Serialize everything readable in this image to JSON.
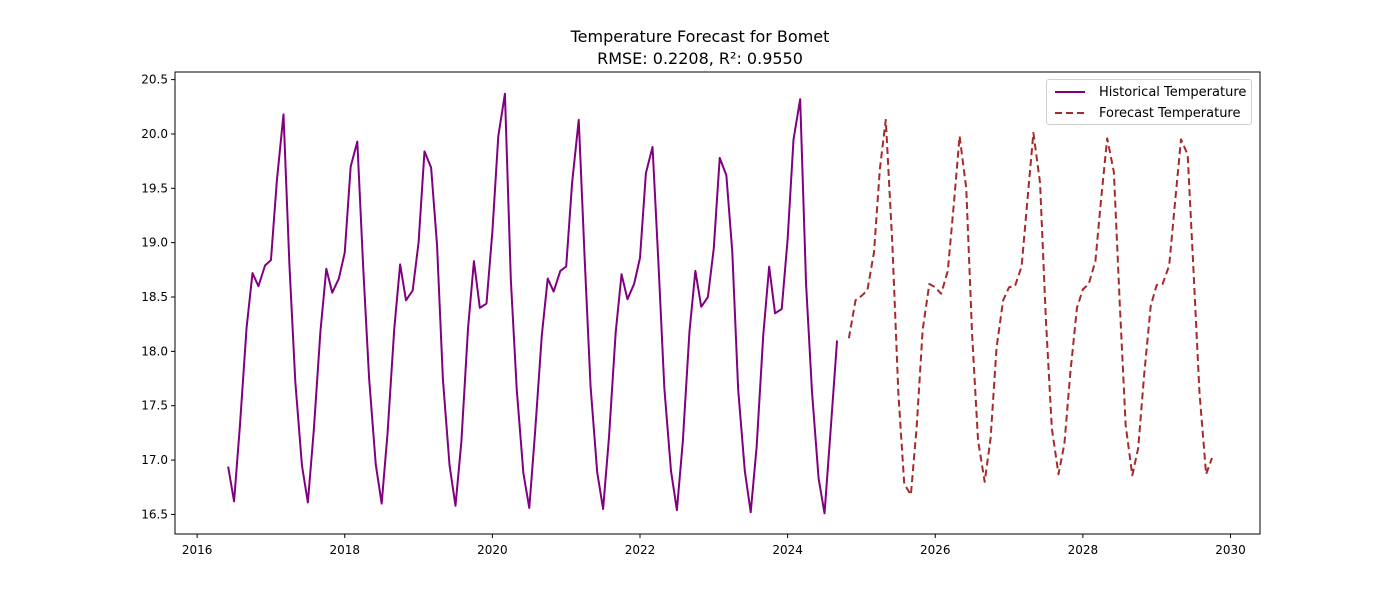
{
  "chart_data": {
    "type": "line",
    "title": "Temperature Forecast for Bomet",
    "subtitle": "RMSE: 0.2208, R²: 0.9550",
    "xlabel": "",
    "ylabel": "",
    "xlim": [
      2015.7,
      2030.4
    ],
    "ylim": [
      16.32,
      20.57
    ],
    "x_ticks": [
      2016,
      2018,
      2020,
      2022,
      2024,
      2026,
      2028,
      2030
    ],
    "y_ticks": [
      16.5,
      17.0,
      17.5,
      18.0,
      18.5,
      19.0,
      19.5,
      20.0,
      20.5
    ],
    "grid": false,
    "legend": "top-right",
    "series": [
      {
        "name": "Historical Temperature",
        "color": "#800080",
        "style": "solid",
        "x": [
          2016.42,
          2016.5,
          2016.58,
          2016.67,
          2016.75,
          2016.83,
          2016.92,
          2017.0,
          2017.08,
          2017.17,
          2017.25,
          2017.33,
          2017.42,
          2017.5,
          2017.58,
          2017.67,
          2017.75,
          2017.83,
          2017.92,
          2018.0,
          2018.08,
          2018.17,
          2018.25,
          2018.33,
          2018.42,
          2018.5,
          2018.58,
          2018.67,
          2018.75,
          2018.83,
          2018.92,
          2019.0,
          2019.08,
          2019.17,
          2019.25,
          2019.33,
          2019.42,
          2019.5,
          2019.58,
          2019.67,
          2019.75,
          2019.83,
          2019.92,
          2020.0,
          2020.08,
          2020.17,
          2020.25,
          2020.33,
          2020.42,
          2020.5,
          2020.58,
          2020.67,
          2020.75,
          2020.83,
          2020.92,
          2021.0,
          2021.08,
          2021.17,
          2021.25,
          2021.33,
          2021.42,
          2021.5,
          2021.58,
          2021.67,
          2021.75,
          2021.83,
          2021.92,
          2022.0,
          2022.08,
          2022.17,
          2022.25,
          2022.33,
          2022.42,
          2022.5,
          2022.58,
          2022.67,
          2022.75,
          2022.83,
          2022.92,
          2023.0,
          2023.08,
          2023.17,
          2023.25,
          2023.33,
          2023.42,
          2023.5,
          2023.58,
          2023.67,
          2023.75,
          2023.83,
          2023.92,
          2024.0,
          2024.08,
          2024.17,
          2024.25,
          2024.33,
          2024.42,
          2024.5,
          2024.58,
          2024.67
        ],
        "values": [
          16.94,
          16.62,
          17.32,
          18.22,
          18.72,
          18.6,
          18.79,
          18.84,
          19.57,
          20.18,
          18.8,
          17.72,
          16.95,
          16.61,
          17.27,
          18.18,
          18.76,
          18.54,
          18.67,
          18.91,
          19.7,
          19.93,
          18.77,
          17.75,
          16.96,
          16.6,
          17.25,
          18.2,
          18.8,
          18.47,
          18.56,
          19.0,
          19.84,
          19.69,
          18.98,
          17.74,
          16.95,
          16.58,
          17.17,
          18.21,
          18.83,
          18.4,
          18.44,
          19.1,
          19.98,
          20.37,
          18.66,
          17.65,
          16.88,
          16.56,
          17.27,
          18.15,
          18.67,
          18.55,
          18.74,
          18.78,
          19.55,
          20.13,
          18.86,
          17.68,
          16.89,
          16.55,
          17.21,
          18.17,
          18.71,
          18.48,
          18.62,
          18.86,
          19.64,
          19.88,
          18.81,
          17.66,
          16.9,
          16.54,
          17.17,
          18.18,
          18.74,
          18.41,
          18.5,
          18.95,
          19.78,
          19.62,
          18.92,
          17.65,
          16.9,
          16.52,
          17.12,
          18.15,
          18.78,
          18.35,
          18.39,
          19.03,
          19.95,
          20.32,
          18.62,
          17.63,
          16.83,
          16.51,
          17.25,
          18.1
        ]
      },
      {
        "name": "Forecast Temperature",
        "color": "#a52a2a",
        "style": "dashed",
        "x": [
          2024.83,
          2024.92,
          2025.0,
          2025.08,
          2025.17,
          2025.25,
          2025.33,
          2025.42,
          2025.5,
          2025.58,
          2025.67,
          2025.75,
          2025.83,
          2025.92,
          2026.0,
          2026.08,
          2026.17,
          2026.25,
          2026.33,
          2026.42,
          2026.5,
          2026.58,
          2026.67,
          2026.75,
          2026.83,
          2026.92,
          2027.0,
          2027.08,
          2027.17,
          2027.25,
          2027.33,
          2027.42,
          2027.5,
          2027.58,
          2027.67,
          2027.75,
          2027.83,
          2027.92,
          2028.0,
          2028.08,
          2028.17,
          2028.25,
          2028.33,
          2028.42,
          2028.5,
          2028.58,
          2028.67,
          2028.75,
          2028.83,
          2028.92,
          2029.0,
          2029.08,
          2029.17,
          2029.25,
          2029.33,
          2029.42,
          2029.5,
          2029.58,
          2029.67,
          2029.75
        ],
        "values": [
          18.12,
          18.47,
          18.51,
          18.56,
          18.91,
          19.68,
          20.13,
          18.97,
          17.62,
          16.78,
          16.68,
          17.32,
          18.2,
          18.62,
          18.59,
          18.53,
          18.74,
          19.34,
          19.98,
          19.5,
          18.15,
          17.18,
          16.8,
          17.2,
          18.03,
          18.47,
          18.59,
          18.6,
          18.78,
          19.4,
          20.01,
          19.55,
          18.28,
          17.29,
          16.87,
          17.15,
          17.8,
          18.4,
          18.57,
          18.62,
          18.83,
          19.42,
          19.96,
          19.65,
          18.44,
          17.32,
          16.86,
          17.11,
          17.78,
          18.42,
          18.61,
          18.62,
          18.79,
          19.38,
          19.95,
          19.81,
          18.73,
          17.62,
          16.87,
          17.02
        ]
      }
    ]
  }
}
